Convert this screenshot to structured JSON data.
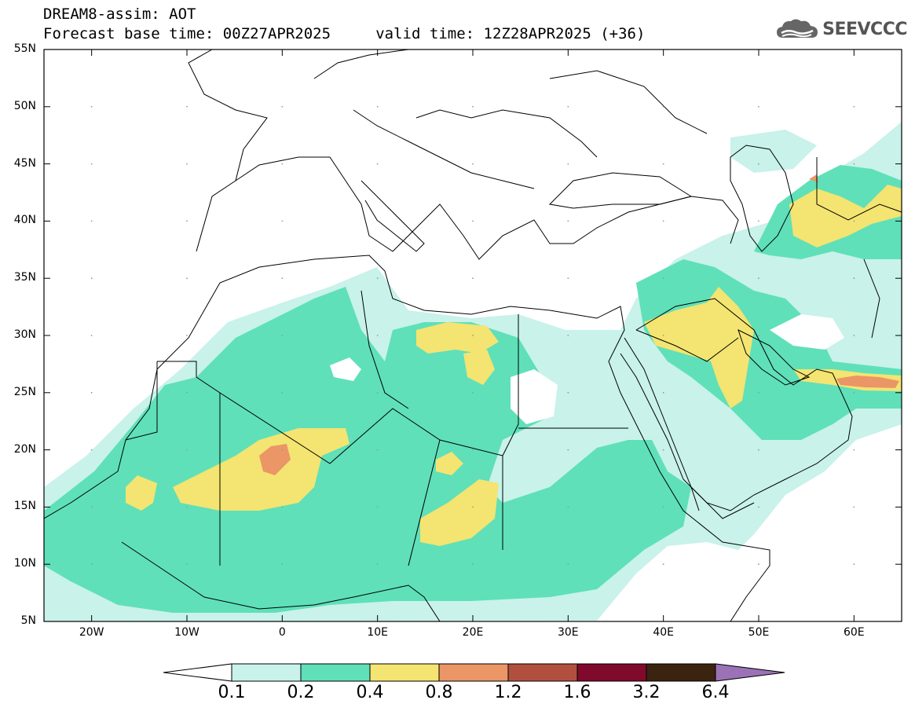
{
  "header": {
    "line1": "DREAM8-assim: AOT",
    "line2": "Forecast base time: 00Z27APR2025     valid time: 12Z28APR2025 (+36)"
  },
  "logo": {
    "text": "SEEVCCC",
    "icon": "cloud-icon"
  },
  "map": {
    "lon_range": [
      -25,
      65
    ],
    "lat_range": [
      5,
      55
    ],
    "lat_ticks": [
      "55N",
      "50N",
      "45N",
      "40N",
      "35N",
      "30N",
      "25N",
      "20N",
      "15N",
      "10N",
      "5N"
    ],
    "lon_ticks": [
      "20W",
      "10W",
      "0",
      "10E",
      "20E",
      "30E",
      "40E",
      "50E",
      "60E"
    ],
    "ocean_color": "#ffffff",
    "border_color": "#000000"
  },
  "colorbar": {
    "labels": [
      "0.1",
      "0.2",
      "0.4",
      "0.8",
      "1.2",
      "1.6",
      "3.2",
      "6.4"
    ],
    "colors": [
      "#ffffff",
      "#c8f2ea",
      "#5fe0b9",
      "#f4e471",
      "#ea9666",
      "#b2503f",
      "#800a2b",
      "#3a2410",
      "#9b72b5"
    ]
  }
}
